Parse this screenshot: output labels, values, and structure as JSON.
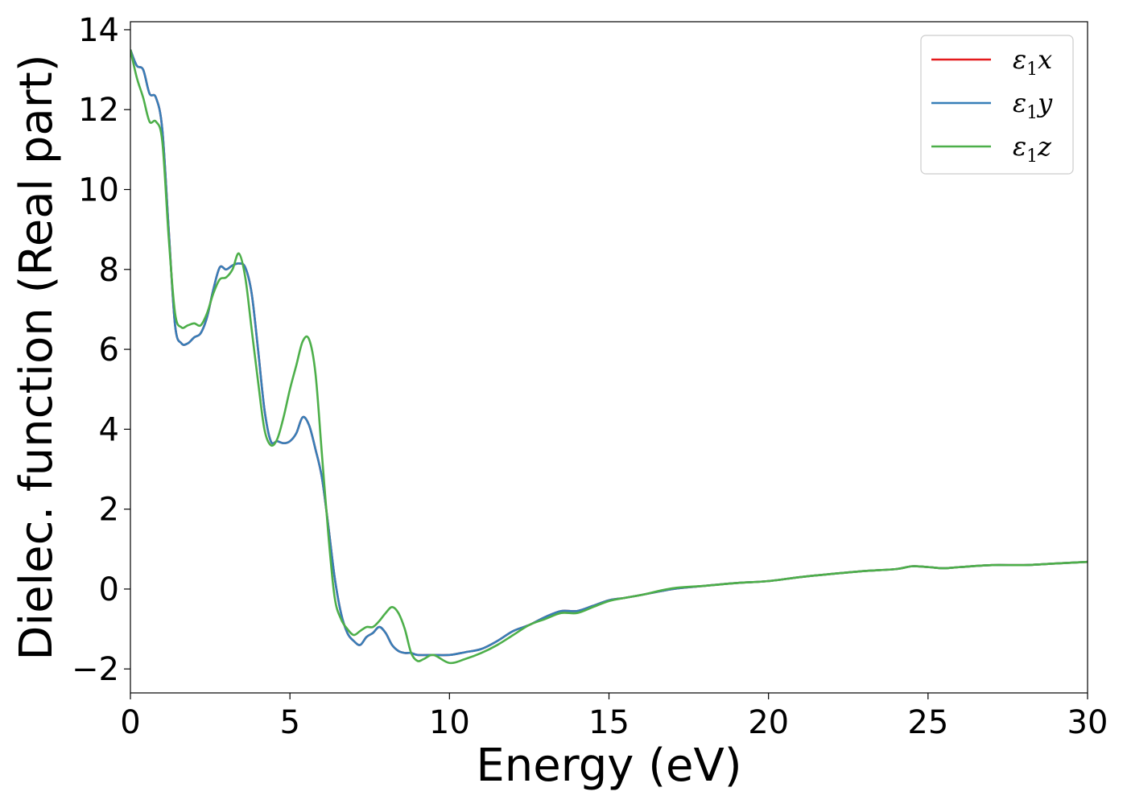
{
  "chart_data": {
    "type": "line",
    "title": "",
    "xlabel": "Energy (eV)",
    "ylabel": "Dielec. function (Real part)",
    "xlim": [
      0,
      30
    ],
    "ylim": [
      -2.6,
      14.2
    ],
    "xticks": [
      0,
      5,
      10,
      15,
      20,
      25,
      30
    ],
    "yticks": [
      -2,
      0,
      2,
      4,
      6,
      8,
      10,
      12,
      14
    ],
    "xtick_labels": [
      "0",
      "5",
      "10",
      "15",
      "20",
      "25",
      "30"
    ],
    "ytick_labels": [
      "−2",
      "0",
      "2",
      "4",
      "6",
      "8",
      "10",
      "12",
      "14"
    ],
    "grid": false,
    "legend_position": "top-right",
    "series": [
      {
        "name": "ε₁x",
        "legend_symbol": "ε",
        "legend_sub": "1",
        "legend_var": "x",
        "color": "#e41a1c",
        "x": [
          0,
          0.2,
          0.4,
          0.6,
          0.8,
          1.0,
          1.2,
          1.4,
          1.6,
          1.8,
          2.0,
          2.2,
          2.4,
          2.6,
          2.8,
          3.0,
          3.2,
          3.4,
          3.6,
          3.8,
          4.0,
          4.2,
          4.4,
          4.6,
          4.8,
          5.0,
          5.2,
          5.4,
          5.6,
          5.8,
          6.0,
          6.2,
          6.4,
          6.6,
          6.8,
          7.0,
          7.2,
          7.4,
          7.6,
          7.8,
          8.0,
          8.2,
          8.4,
          8.6,
          8.8,
          9.0,
          9.5,
          10.0,
          10.5,
          11.0,
          11.5,
          12.0,
          12.5,
          13.0,
          13.5,
          14.0,
          14.5,
          15.0,
          15.5,
          16.0,
          17.0,
          18.0,
          19.0,
          20.0,
          21.0,
          22.0,
          23.0,
          24.0,
          24.5,
          25.0,
          25.5,
          26.0,
          27.0,
          28.0,
          29.0,
          30.0
        ],
        "values": [
          13.5,
          13.1,
          13.0,
          12.4,
          12.3,
          11.5,
          9.0,
          6.6,
          6.15,
          6.15,
          6.3,
          6.4,
          6.8,
          7.5,
          8.05,
          8.0,
          8.1,
          8.15,
          8.05,
          7.4,
          6.0,
          4.5,
          3.7,
          3.7,
          3.65,
          3.7,
          3.9,
          4.3,
          4.1,
          3.5,
          2.8,
          1.6,
          0.3,
          -0.6,
          -1.1,
          -1.3,
          -1.4,
          -1.2,
          -1.1,
          -0.95,
          -1.1,
          -1.4,
          -1.55,
          -1.6,
          -1.6,
          -1.65,
          -1.65,
          -1.65,
          -1.58,
          -1.5,
          -1.3,
          -1.05,
          -0.9,
          -0.7,
          -0.55,
          -0.55,
          -0.42,
          -0.28,
          -0.22,
          -0.15,
          0.0,
          0.08,
          0.15,
          0.2,
          0.3,
          0.38,
          0.45,
          0.5,
          0.57,
          0.55,
          0.52,
          0.55,
          0.6,
          0.6,
          0.64,
          0.68
        ]
      },
      {
        "name": "ε₁y",
        "legend_symbol": "ε",
        "legend_sub": "1",
        "legend_var": "y",
        "color": "#377eb8",
        "x": [
          0,
          0.2,
          0.4,
          0.6,
          0.8,
          1.0,
          1.2,
          1.4,
          1.6,
          1.8,
          2.0,
          2.2,
          2.4,
          2.6,
          2.8,
          3.0,
          3.2,
          3.4,
          3.6,
          3.8,
          4.0,
          4.2,
          4.4,
          4.6,
          4.8,
          5.0,
          5.2,
          5.4,
          5.6,
          5.8,
          6.0,
          6.2,
          6.4,
          6.6,
          6.8,
          7.0,
          7.2,
          7.4,
          7.6,
          7.8,
          8.0,
          8.2,
          8.4,
          8.6,
          8.8,
          9.0,
          9.5,
          10.0,
          10.5,
          11.0,
          11.5,
          12.0,
          12.5,
          13.0,
          13.5,
          14.0,
          14.5,
          15.0,
          15.5,
          16.0,
          17.0,
          18.0,
          19.0,
          20.0,
          21.0,
          22.0,
          23.0,
          24.0,
          24.5,
          25.0,
          25.5,
          26.0,
          27.0,
          28.0,
          29.0,
          30.0
        ],
        "values": [
          13.5,
          13.1,
          13.0,
          12.4,
          12.3,
          11.5,
          9.0,
          6.6,
          6.15,
          6.15,
          6.3,
          6.4,
          6.8,
          7.5,
          8.05,
          8.0,
          8.1,
          8.15,
          8.05,
          7.4,
          6.0,
          4.5,
          3.7,
          3.7,
          3.65,
          3.7,
          3.9,
          4.3,
          4.1,
          3.5,
          2.8,
          1.6,
          0.3,
          -0.6,
          -1.1,
          -1.3,
          -1.4,
          -1.2,
          -1.1,
          -0.95,
          -1.1,
          -1.4,
          -1.55,
          -1.6,
          -1.6,
          -1.65,
          -1.65,
          -1.65,
          -1.58,
          -1.5,
          -1.3,
          -1.05,
          -0.9,
          -0.7,
          -0.55,
          -0.55,
          -0.42,
          -0.28,
          -0.22,
          -0.15,
          0.0,
          0.08,
          0.15,
          0.2,
          0.3,
          0.38,
          0.45,
          0.5,
          0.57,
          0.55,
          0.52,
          0.55,
          0.6,
          0.6,
          0.64,
          0.68
        ]
      },
      {
        "name": "ε₁z",
        "legend_symbol": "ε",
        "legend_sub": "1",
        "legend_var": "z",
        "color": "#4daf4a",
        "x": [
          0,
          0.2,
          0.4,
          0.6,
          0.8,
          1.0,
          1.2,
          1.4,
          1.6,
          1.8,
          2.0,
          2.2,
          2.4,
          2.6,
          2.8,
          3.0,
          3.2,
          3.4,
          3.6,
          3.8,
          4.0,
          4.2,
          4.4,
          4.6,
          4.8,
          5.0,
          5.2,
          5.4,
          5.6,
          5.8,
          6.0,
          6.2,
          6.4,
          6.6,
          6.8,
          7.0,
          7.2,
          7.4,
          7.6,
          7.8,
          8.0,
          8.2,
          8.4,
          8.6,
          8.8,
          9.0,
          9.2,
          9.5,
          10.0,
          10.5,
          11.0,
          11.5,
          12.0,
          12.5,
          13.0,
          13.5,
          14.0,
          14.5,
          15.0,
          15.5,
          16.0,
          17.0,
          18.0,
          19.0,
          20.0,
          21.0,
          22.0,
          23.0,
          24.0,
          24.5,
          25.0,
          25.5,
          26.0,
          27.0,
          28.0,
          29.0,
          30.0
        ],
        "values": [
          13.5,
          12.8,
          12.3,
          11.7,
          11.7,
          11.2,
          8.8,
          6.9,
          6.55,
          6.6,
          6.65,
          6.6,
          6.9,
          7.4,
          7.75,
          7.8,
          8.0,
          8.4,
          7.8,
          6.5,
          5.2,
          4.0,
          3.6,
          3.75,
          4.3,
          5.0,
          5.6,
          6.2,
          6.25,
          5.4,
          3.4,
          1.4,
          -0.2,
          -0.75,
          -1.0,
          -1.15,
          -1.05,
          -0.95,
          -0.95,
          -0.8,
          -0.6,
          -0.45,
          -0.6,
          -1.0,
          -1.6,
          -1.8,
          -1.75,
          -1.65,
          -1.85,
          -1.75,
          -1.6,
          -1.4,
          -1.15,
          -0.9,
          -0.75,
          -0.6,
          -0.6,
          -0.45,
          -0.3,
          -0.22,
          -0.15,
          0.02,
          0.08,
          0.15,
          0.2,
          0.3,
          0.38,
          0.45,
          0.5,
          0.57,
          0.55,
          0.52,
          0.55,
          0.6,
          0.6,
          0.64,
          0.68
        ]
      }
    ]
  }
}
